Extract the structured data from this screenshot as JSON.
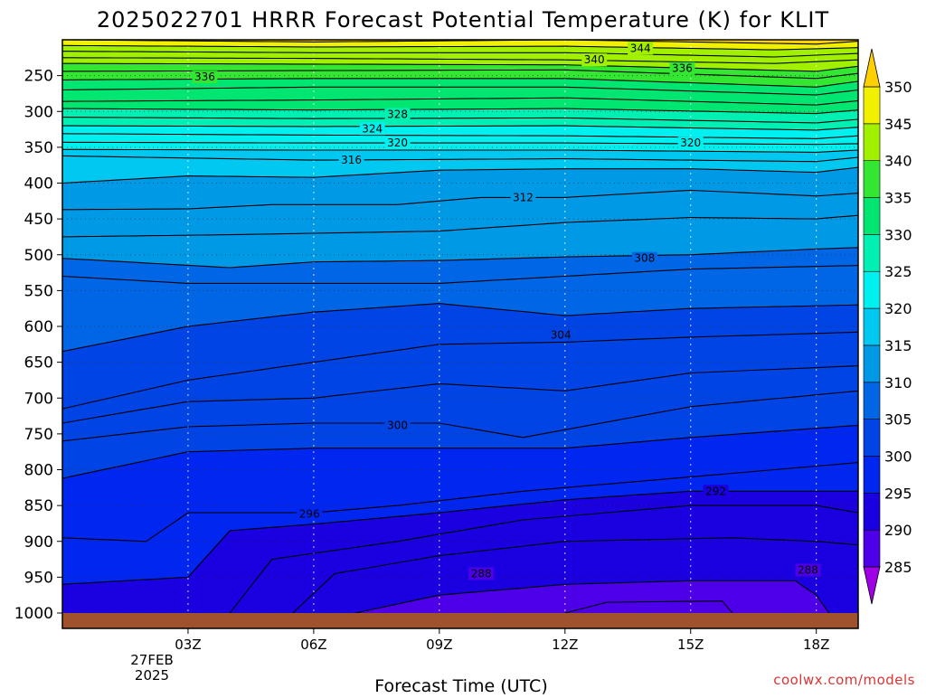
{
  "chart_data": {
    "type": "heatmap",
    "title": "2025022701 HRRR Forecast Potential Temperature (K) for KLIT",
    "xlabel": "Forecast Time (UTC)",
    "ylabel": "",
    "credit": "coolwx.com/models",
    "date_lines": [
      "27FEB",
      "2025"
    ],
    "x_ticks": [
      "03Z",
      "06Z",
      "09Z",
      "12Z",
      "15Z",
      "18Z"
    ],
    "x_hours": [
      3,
      6,
      9,
      12,
      15,
      18
    ],
    "xlim_hours": [
      0,
      19
    ],
    "y_ticks": [
      250,
      300,
      350,
      400,
      450,
      500,
      550,
      600,
      650,
      700,
      750,
      800,
      850,
      900,
      950,
      1000
    ],
    "ylim_hPa": [
      1000,
      200
    ],
    "grid": true,
    "colorbar": {
      "ticks": [
        350,
        345,
        340,
        335,
        330,
        325,
        320,
        315,
        310,
        305,
        300,
        295,
        290,
        285
      ],
      "levels": [
        285,
        290,
        295,
        300,
        305,
        310,
        315,
        320,
        325,
        330,
        335,
        340,
        345,
        350
      ],
      "colors": [
        "#7a00e6",
        "#4d00e8",
        "#1a00e0",
        "#0026f0",
        "#0044e6",
        "#0066e6",
        "#0099e6",
        "#00c8f0",
        "#00f0f0",
        "#00f0b4",
        "#00e670",
        "#32e632",
        "#a0f000",
        "#f0f000",
        "#ffd200"
      ],
      "lower_cap_color": "#a000e6",
      "upper_cap_color": "#ffd000"
    },
    "contour_labels": [
      {
        "value": "344",
        "hour": 13.8,
        "p": 212
      },
      {
        "value": "340",
        "hour": 12.7,
        "p": 228
      },
      {
        "value": "336",
        "hour": 14.8,
        "p": 240
      },
      {
        "value": "336",
        "hour": 3.4,
        "p": 252
      },
      {
        "value": "328",
        "hour": 8.0,
        "p": 304
      },
      {
        "value": "324",
        "hour": 7.4,
        "p": 324
      },
      {
        "value": "320",
        "hour": 8.0,
        "p": 344
      },
      {
        "value": "320",
        "hour": 15.0,
        "p": 344
      },
      {
        "value": "316",
        "hour": 6.9,
        "p": 368
      },
      {
        "value": "312",
        "hour": 11.0,
        "p": 420
      },
      {
        "value": "308",
        "hour": 13.9,
        "p": 505
      },
      {
        "value": "304",
        "hour": 11.9,
        "p": 612
      },
      {
        "value": "300",
        "hour": 8.0,
        "p": 738
      },
      {
        "value": "296",
        "hour": 5.9,
        "p": 862
      },
      {
        "value": "292",
        "hour": 15.6,
        "p": 830
      },
      {
        "value": "288",
        "hour": 10.0,
        "p": 945
      },
      {
        "value": "288",
        "hour": 17.8,
        "p": 940
      }
    ],
    "isentropes": [
      {
        "theta": 346,
        "pts": [
          [
            0,
            200
          ],
          [
            6,
            203
          ],
          [
            12,
            200
          ],
          [
            18,
            206
          ],
          [
            19,
            202
          ]
        ]
      },
      {
        "theta": 344,
        "pts": [
          [
            0,
            208
          ],
          [
            6,
            210
          ],
          [
            12,
            209
          ],
          [
            17,
            214
          ],
          [
            19,
            211
          ]
        ]
      },
      {
        "theta": 342,
        "pts": [
          [
            0,
            216
          ],
          [
            6,
            218
          ],
          [
            12,
            218
          ],
          [
            17,
            224
          ],
          [
            19,
            219
          ]
        ]
      },
      {
        "theta": 340,
        "pts": [
          [
            0,
            225
          ],
          [
            6,
            226
          ],
          [
            12,
            228
          ],
          [
            17,
            233
          ],
          [
            19,
            228
          ]
        ]
      },
      {
        "theta": 338,
        "pts": [
          [
            0,
            233
          ],
          [
            6,
            234
          ],
          [
            12,
            235
          ],
          [
            18,
            244
          ],
          [
            19,
            237
          ]
        ]
      },
      {
        "theta": 336,
        "pts": [
          [
            0,
            244
          ],
          [
            6,
            243
          ],
          [
            12,
            242
          ],
          [
            18,
            254
          ],
          [
            19,
            247
          ]
        ]
      },
      {
        "theta": 334,
        "pts": [
          [
            0,
            256
          ],
          [
            6,
            254
          ],
          [
            12,
            254
          ],
          [
            18,
            266
          ],
          [
            19,
            258
          ]
        ]
      },
      {
        "theta": 332,
        "pts": [
          [
            0,
            270
          ],
          [
            6,
            266
          ],
          [
            12,
            266
          ],
          [
            18,
            277
          ],
          [
            19,
            270
          ]
        ]
      },
      {
        "theta": 330,
        "pts": [
          [
            0,
            286
          ],
          [
            6,
            284
          ],
          [
            12,
            281
          ],
          [
            18,
            291
          ],
          [
            19,
            285
          ]
        ]
      },
      {
        "theta": 328,
        "pts": [
          [
            0,
            296
          ],
          [
            6,
            298
          ],
          [
            12,
            296
          ],
          [
            18,
            303
          ],
          [
            19,
            298
          ]
        ]
      },
      {
        "theta": 326,
        "pts": [
          [
            0,
            308
          ],
          [
            6,
            310
          ],
          [
            12,
            309
          ],
          [
            18,
            316
          ],
          [
            19,
            311
          ]
        ]
      },
      {
        "theta": 324,
        "pts": [
          [
            0,
            320
          ],
          [
            6,
            321
          ],
          [
            12,
            320
          ],
          [
            18,
            326
          ],
          [
            19,
            322
          ]
        ]
      },
      {
        "theta": 322,
        "pts": [
          [
            0,
            331
          ],
          [
            6,
            333
          ],
          [
            12,
            334
          ],
          [
            18,
            338
          ],
          [
            19,
            334
          ]
        ]
      },
      {
        "theta": 320,
        "pts": [
          [
            0,
            343
          ],
          [
            6,
            344
          ],
          [
            12,
            344
          ],
          [
            18,
            346
          ],
          [
            19,
            345
          ]
        ]
      },
      {
        "theta": 318,
        "pts": [
          [
            0,
            353
          ],
          [
            6,
            354
          ],
          [
            12,
            354
          ],
          [
            18,
            357
          ],
          [
            19,
            354
          ]
        ]
      },
      {
        "theta": 316,
        "pts": [
          [
            0,
            362
          ],
          [
            6,
            368
          ],
          [
            12,
            366
          ],
          [
            18,
            370
          ],
          [
            19,
            364
          ]
        ]
      },
      {
        "theta": 314,
        "pts": [
          [
            0,
            400
          ],
          [
            3,
            390
          ],
          [
            6,
            392
          ],
          [
            9,
            382
          ],
          [
            12,
            380
          ],
          [
            15,
            380
          ],
          [
            18,
            385
          ],
          [
            19,
            378
          ]
        ]
      },
      {
        "theta": 312,
        "pts": [
          [
            0,
            437
          ],
          [
            3,
            436
          ],
          [
            5,
            430
          ],
          [
            8,
            430
          ],
          [
            10,
            420
          ],
          [
            12,
            420
          ],
          [
            15,
            410
          ],
          [
            18,
            418
          ],
          [
            19,
            414
          ]
        ]
      },
      {
        "theta": 310,
        "pts": [
          [
            0,
            475
          ],
          [
            4,
            472
          ],
          [
            6,
            470
          ],
          [
            9,
            467
          ],
          [
            12,
            455
          ],
          [
            15,
            448
          ],
          [
            18,
            450
          ],
          [
            19,
            445
          ]
        ]
      },
      {
        "theta": 308,
        "pts": [
          [
            0,
            505
          ],
          [
            4,
            518
          ],
          [
            6,
            510
          ],
          [
            9,
            508
          ],
          [
            12,
            503
          ],
          [
            15,
            500
          ],
          [
            18,
            492
          ],
          [
            19,
            490
          ]
        ]
      },
      {
        "theta": 306,
        "pts": [
          [
            0,
            530
          ],
          [
            3,
            540
          ],
          [
            6,
            540
          ],
          [
            9,
            540
          ],
          [
            12,
            530
          ],
          [
            15,
            520
          ],
          [
            19,
            515
          ]
        ]
      },
      {
        "theta": 304,
        "pts": [
          [
            0,
            635
          ],
          [
            3,
            600
          ],
          [
            6,
            580
          ],
          [
            9,
            568
          ],
          [
            12,
            585
          ],
          [
            15,
            575
          ],
          [
            19,
            570
          ]
        ]
      },
      {
        "theta": 302,
        "pts": [
          [
            0,
            715
          ],
          [
            3,
            675
          ],
          [
            6,
            650
          ],
          [
            9,
            625
          ],
          [
            12,
            622
          ],
          [
            15,
            615
          ],
          [
            19,
            608
          ]
        ]
      },
      {
        "theta": 301,
        "pts": [
          [
            0,
            735
          ],
          [
            3,
            705
          ],
          [
            6,
            700
          ],
          [
            9,
            680
          ],
          [
            12,
            690
          ],
          [
            15,
            665
          ],
          [
            19,
            655
          ]
        ]
      },
      {
        "theta": 300,
        "pts": [
          [
            0,
            760
          ],
          [
            3,
            740
          ],
          [
            6,
            735
          ],
          [
            9,
            735
          ],
          [
            11,
            755
          ],
          [
            15,
            712
          ],
          [
            19,
            690
          ]
        ]
      },
      {
        "theta": 298,
        "pts": [
          [
            0,
            812
          ],
          [
            3,
            775
          ],
          [
            6,
            770
          ],
          [
            9,
            770
          ],
          [
            12,
            770
          ],
          [
            15,
            755
          ],
          [
            19,
            738
          ]
        ]
      },
      {
        "theta": 296,
        "pts": [
          [
            0,
            895
          ],
          [
            2,
            900
          ],
          [
            3,
            860
          ],
          [
            6,
            860
          ],
          [
            8,
            850
          ],
          [
            11,
            830
          ],
          [
            15,
            810
          ],
          [
            19,
            790
          ]
        ]
      },
      {
        "theta": 294,
        "pts": [
          [
            0,
            960
          ],
          [
            3,
            950
          ],
          [
            4,
            885
          ],
          [
            6,
            876
          ],
          [
            9,
            860
          ],
          [
            12,
            842
          ],
          [
            15,
            830
          ],
          [
            19,
            830
          ]
        ]
      },
      {
        "theta": 292,
        "pts": [
          [
            4,
            1000
          ],
          [
            5,
            925
          ],
          [
            8,
            900
          ],
          [
            11,
            870
          ],
          [
            15,
            850
          ],
          [
            18,
            850
          ],
          [
            19,
            860
          ]
        ]
      },
      {
        "theta": 290,
        "pts": [
          [
            5.5,
            1000
          ],
          [
            6.5,
            945
          ],
          [
            9,
            920
          ],
          [
            12,
            900
          ],
          [
            16,
            895
          ],
          [
            18,
            900
          ],
          [
            19,
            905
          ]
        ]
      },
      {
        "theta": 288,
        "pts": [
          [
            7,
            1000
          ],
          [
            9,
            975
          ],
          [
            12,
            960
          ],
          [
            15,
            955
          ],
          [
            17.5,
            955
          ],
          [
            18,
            975
          ],
          [
            18.3,
            1000
          ]
        ]
      },
      {
        "theta": 286,
        "pts": [
          [
            12,
            1000
          ],
          [
            13,
            985
          ],
          [
            16,
            983
          ],
          [
            16.3,
            995
          ],
          [
            16,
            1000
          ]
        ]
      }
    ]
  }
}
